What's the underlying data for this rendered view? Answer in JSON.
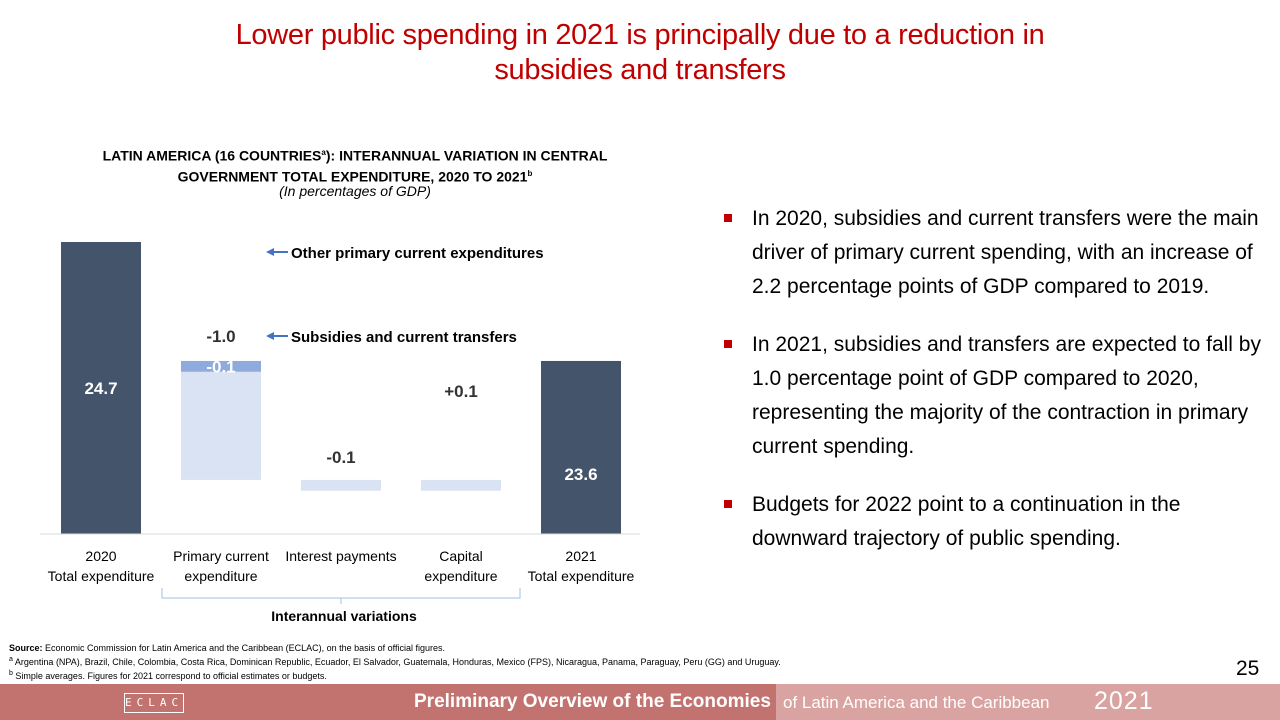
{
  "slide": {
    "title_line1": "Lower public spending in 2021 is principally due to a reduction in",
    "title_line2": "subsidies and transfers",
    "page_number": "25"
  },
  "chart_data": {
    "type": "bar",
    "subtype": "waterfall",
    "title_line1": "LATIN AMERICA (16 COUNTRIES",
    "title_sup": "a",
    "title_line1_end": "): INTERANNUAL VARIATION IN CENTRAL",
    "title_line2": "GOVERNMENT TOTAL EXPENDITURE, 2020 TO 2021",
    "title_line2_sup": "b",
    "subtitle": "(In percentages of GDP)",
    "ylim": [
      0,
      24.7
    ],
    "grid": false,
    "categories": [
      {
        "line1": "2020",
        "line2": "Total expenditure"
      },
      {
        "line1": "Primary current",
        "line2": "expenditure"
      },
      {
        "line1": "Interest payments",
        "line2": ""
      },
      {
        "line1": "Capital",
        "line2": "expenditure"
      },
      {
        "line1": "2021",
        "line2": "Total expenditure"
      }
    ],
    "bars": [
      {
        "name": "total-2020",
        "kind": "total",
        "base": 0,
        "value": 24.7,
        "label": "24.7"
      },
      {
        "name": "other-primary",
        "kind": "segment",
        "base": 23.6,
        "value": -0.1,
        "label": "-0.1"
      },
      {
        "name": "subsidies",
        "kind": "segment",
        "base": 23.5,
        "value": -1.0,
        "label": "-1.0"
      },
      {
        "name": "interest",
        "kind": "change",
        "base": 22.5,
        "value": -0.1,
        "label": "-0.1"
      },
      {
        "name": "capital",
        "kind": "change",
        "base": 22.4,
        "value": 0.1,
        "label": "+0.1"
      },
      {
        "name": "total-2021",
        "kind": "total",
        "base": 0,
        "value": 23.6,
        "label": "23.6"
      }
    ],
    "annotations": [
      {
        "text": "Other primary current expenditures",
        "target": "other-primary"
      },
      {
        "text": "Subsidies and current transfers",
        "target": "subsidies"
      }
    ],
    "group_label": "Interannual variations",
    "colors": {
      "total": "#44546a",
      "change": "#dae3f3",
      "segment_dark": "#8faadc",
      "arrow": "#4472c4"
    }
  },
  "bullets": [
    "In 2020, subsidies and current transfers were the main driver of primary current spending, with an increase of 2.2 percentage points of GDP compared to 2019.",
    "In 2021, subsidies and transfers are expected to fall by 1.0 percentage point of GDP compared to 2020, representing the majority of the contraction in primary current spending.",
    "Budgets for 2022 point to a continuation in the downward trajectory of public spending."
  ],
  "footnotes": {
    "source_label": "Source:",
    "source_text": " Economic Commission for Latin America and the Caribbean (ECLAC), on the basis of official figures.",
    "note_a_mark": "a",
    "note_a": " Argentina (NPA), Brazil, Chile, Colombia, Costa Rica, Dominican Republic, Ecuador, El Salvador, Guatemala, Honduras, Mexico (FPS), Nicaragua, Panama, Paraguay, Peru (GG) and Uruguay.",
    "note_b_mark": "b",
    "note_b": " Simple averages. Figures for 2021 correspond to official estimates or budgets."
  },
  "footer": {
    "logo": "ECLAC",
    "main": "Preliminary Overview of the Economies",
    "sub": "of Latin America and the Caribbean",
    "year": "2021"
  }
}
